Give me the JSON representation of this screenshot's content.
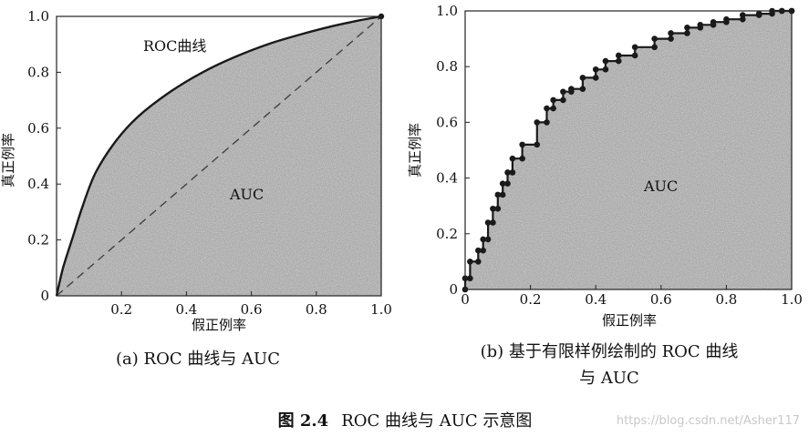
{
  "figure_caption": {
    "label": "图 2.4",
    "text": "ROC 曲线与 AUC 示意图"
  },
  "watermark": "https://blog.csdn.net/Asher117",
  "colors": {
    "area_fill": "#a9a9a9",
    "curve": "#1a1a1a",
    "diagonal": "#3a3a3a"
  },
  "chart_data": [
    {
      "type": "area",
      "caption": "(a) ROC 曲线与 AUC",
      "xlabel": "假正例率",
      "ylabel": "真正例率",
      "xlim": [
        0,
        1
      ],
      "ylim": [
        0,
        1
      ],
      "x_ticks": [
        "0.2",
        "0.4",
        "0.6",
        "0.8",
        "1.0"
      ],
      "y_ticks": [
        "0",
        "0.2",
        "0.4",
        "0.6",
        "0.8",
        "1.0"
      ],
      "curve_label": "ROC曲线",
      "area_label": "AUC",
      "series": [
        {
          "name": "ROC曲线",
          "x": [
            0,
            0.02,
            0.05,
            0.08,
            0.12,
            0.18,
            0.25,
            0.35,
            0.45,
            0.55,
            0.65,
            0.75,
            0.85,
            0.93,
            1.0
          ],
          "y": [
            0,
            0.1,
            0.21,
            0.32,
            0.44,
            0.55,
            0.64,
            0.73,
            0.8,
            0.855,
            0.9,
            0.935,
            0.965,
            0.985,
            1.0
          ]
        },
        {
          "name": "diagonal",
          "x": [
            0,
            1
          ],
          "y": [
            0,
            1
          ]
        }
      ]
    },
    {
      "type": "line",
      "caption_lines": [
        "(b) 基于有限样例绘制的 ROC 曲线",
        "与 AUC"
      ],
      "xlabel": "假正例率",
      "ylabel": "真正例率",
      "xlim": [
        0,
        1
      ],
      "ylim": [
        0,
        1
      ],
      "x_ticks": [
        "0",
        "0.2",
        "0.4",
        "0.6",
        "0.8",
        "1.0"
      ],
      "y_ticks": [
        "0",
        "0.2",
        "0.4",
        "0.6",
        "0.8",
        "1.0"
      ],
      "area_label": "AUC",
      "series": [
        {
          "name": "ROC",
          "x": [
            0,
            0,
            0.015,
            0.015,
            0.04,
            0.04,
            0.055,
            0.055,
            0.07,
            0.07,
            0.085,
            0.085,
            0.1,
            0.1,
            0.115,
            0.115,
            0.13,
            0.13,
            0.145,
            0.145,
            0.175,
            0.175,
            0.22,
            0.22,
            0.25,
            0.25,
            0.27,
            0.27,
            0.3,
            0.3,
            0.325,
            0.325,
            0.36,
            0.36,
            0.4,
            0.4,
            0.43,
            0.43,
            0.47,
            0.47,
            0.52,
            0.52,
            0.58,
            0.58,
            0.63,
            0.63,
            0.68,
            0.68,
            0.72,
            0.72,
            0.76,
            0.76,
            0.8,
            0.8,
            0.85,
            0.85,
            0.9,
            0.9,
            0.94,
            0.94,
            0.97,
            0.97,
            1.0,
            1.0
          ],
          "y": [
            0,
            0.04,
            0.04,
            0.1,
            0.1,
            0.14,
            0.14,
            0.18,
            0.18,
            0.24,
            0.24,
            0.29,
            0.29,
            0.34,
            0.34,
            0.38,
            0.38,
            0.42,
            0.42,
            0.47,
            0.47,
            0.52,
            0.52,
            0.6,
            0.6,
            0.65,
            0.65,
            0.68,
            0.68,
            0.71,
            0.71,
            0.72,
            0.72,
            0.76,
            0.76,
            0.79,
            0.79,
            0.82,
            0.82,
            0.84,
            0.84,
            0.87,
            0.87,
            0.9,
            0.9,
            0.92,
            0.92,
            0.94,
            0.94,
            0.95,
            0.95,
            0.96,
            0.96,
            0.97,
            0.97,
            0.985,
            0.985,
            0.99,
            0.99,
            1.0,
            1.0,
            1.0,
            1.0,
            1.0
          ]
        }
      ]
    }
  ]
}
